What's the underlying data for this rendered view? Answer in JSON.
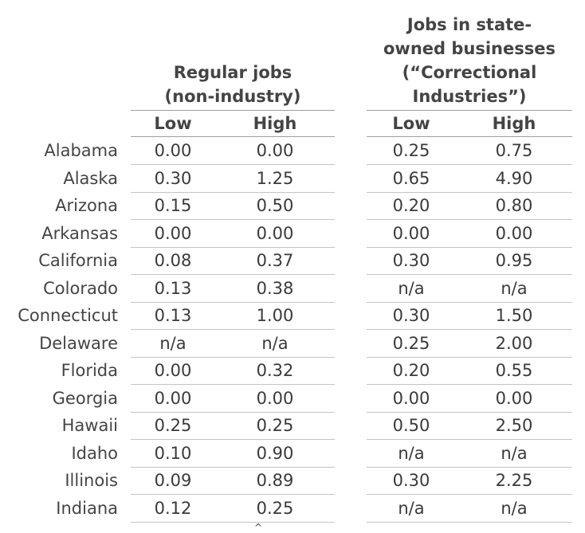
{
  "headers": {
    "regular_jobs": [
      "Regular jobs",
      "(non-industry)"
    ],
    "correctional_industries": [
      "Jobs in state-",
      "owned businesses",
      "(“Correctional",
      "Industries”)"
    ],
    "low": "Low",
    "high": "High"
  },
  "rows": [
    {
      "state": "Alabama",
      "reg_low": "0.00",
      "reg_high": "0.00",
      "ci_low": "0.25",
      "ci_high": "0.75"
    },
    {
      "state": "Alaska",
      "reg_low": "0.30",
      "reg_high": "1.25",
      "ci_low": "0.65",
      "ci_high": "4.90"
    },
    {
      "state": "Arizona",
      "reg_low": "0.15",
      "reg_high": "0.50",
      "ci_low": "0.20",
      "ci_high": "0.80"
    },
    {
      "state": "Arkansas",
      "reg_low": "0.00",
      "reg_high": "0.00",
      "ci_low": "0.00",
      "ci_high": "0.00"
    },
    {
      "state": "California",
      "reg_low": "0.08",
      "reg_high": "0.37",
      "ci_low": "0.30",
      "ci_high": "0.95"
    },
    {
      "state": "Colorado",
      "reg_low": "0.13",
      "reg_high": "0.38",
      "ci_low": "n/a",
      "ci_high": "n/a"
    },
    {
      "state": "Connecticut",
      "reg_low": "0.13",
      "reg_high": "1.00",
      "ci_low": "0.30",
      "ci_high": "1.50"
    },
    {
      "state": "Delaware",
      "reg_low": "n/a",
      "reg_high": "n/a",
      "ci_low": "0.25",
      "ci_high": "2.00"
    },
    {
      "state": "Florida",
      "reg_low": "0.00",
      "reg_high": "0.32",
      "ci_low": "0.20",
      "ci_high": "0.55"
    },
    {
      "state": "Georgia",
      "reg_low": "0.00",
      "reg_high": "0.00",
      "ci_low": "0.00",
      "ci_high": "0.00"
    },
    {
      "state": "Hawaii",
      "reg_low": "0.25",
      "reg_high": "0.25",
      "ci_low": "0.50",
      "ci_high": "2.50"
    },
    {
      "state": "Idaho",
      "reg_low": "0.10",
      "reg_high": "0.90",
      "ci_low": "n/a",
      "ci_high": "n/a"
    },
    {
      "state": "Illinois",
      "reg_low": "0.09",
      "reg_high": "0.89",
      "ci_low": "0.30",
      "ci_high": "2.25"
    },
    {
      "state": "Indiana",
      "reg_low": "0.12",
      "reg_high": "0.25",
      "ci_low": "n/a",
      "ci_high": "n/a"
    }
  ]
}
